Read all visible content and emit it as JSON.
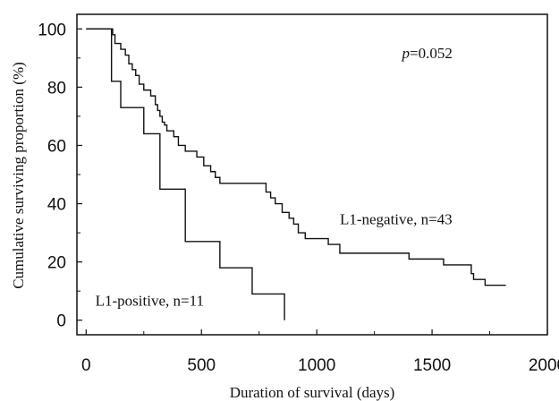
{
  "chart_data": {
    "type": "line",
    "subtype": "kaplan-meier step",
    "title": "",
    "xlabel": "Duration of survival (days)",
    "ylabel": "Cumulative surviving proportion (%)",
    "xlim": [
      -40,
      2000
    ],
    "ylim": [
      -5,
      105
    ],
    "xticks": [
      0,
      500,
      1000,
      1500,
      2000
    ],
    "xtick_labels": [
      "0",
      "500",
      "1000",
      "1500",
      "2000"
    ],
    "yticks": [
      0,
      20,
      40,
      60,
      80,
      100
    ],
    "ytick_labels": [
      "0",
      "20",
      "40",
      "60",
      "80",
      "100"
    ],
    "grid": false,
    "legend": "none (series labelled directly on plot)",
    "series": [
      {
        "name": "L1-negative, n=43",
        "color": "#111111",
        "x": [
          0,
          115,
          125,
          150,
          170,
          185,
          200,
          215,
          230,
          250,
          280,
          300,
          310,
          320,
          330,
          340,
          350,
          380,
          400,
          430,
          480,
          510,
          540,
          560,
          580,
          620,
          780,
          800,
          820,
          850,
          880,
          900,
          920,
          950,
          1000,
          1050,
          1100,
          1150,
          1200,
          1250,
          1320,
          1400,
          1420,
          1450,
          1550,
          1650,
          1670,
          1680,
          1700,
          1730,
          1820
        ],
        "y": [
          100,
          98,
          95,
          93,
          91,
          88,
          86,
          84,
          81,
          79,
          77,
          74,
          72,
          70,
          68,
          67,
          65,
          63,
          60,
          58,
          56,
          53,
          51,
          49,
          47,
          47,
          44,
          42,
          40,
          37,
          35,
          33,
          30,
          28,
          28,
          26,
          23,
          23,
          23,
          23,
          23,
          21,
          21,
          21,
          19,
          19,
          16,
          14,
          14,
          12,
          12
        ]
      },
      {
        "name": "L1-positive, n=11",
        "color": "#111111",
        "x": [
          0,
          110,
          150,
          250,
          320,
          430,
          580,
          720,
          860,
          860
        ],
        "y": [
          100,
          82,
          73,
          64,
          45,
          27,
          18,
          9,
          9,
          0
        ]
      }
    ],
    "annotations": [
      {
        "text_prefix": "p",
        "text_suffix": "=0.052",
        "x": 1370,
        "y": 90
      },
      {
        "text": "L1-negative, n=43",
        "x": 1100,
        "y": 33
      },
      {
        "text": "L1-positive, n=11",
        "x": 40,
        "y": 5
      }
    ]
  }
}
